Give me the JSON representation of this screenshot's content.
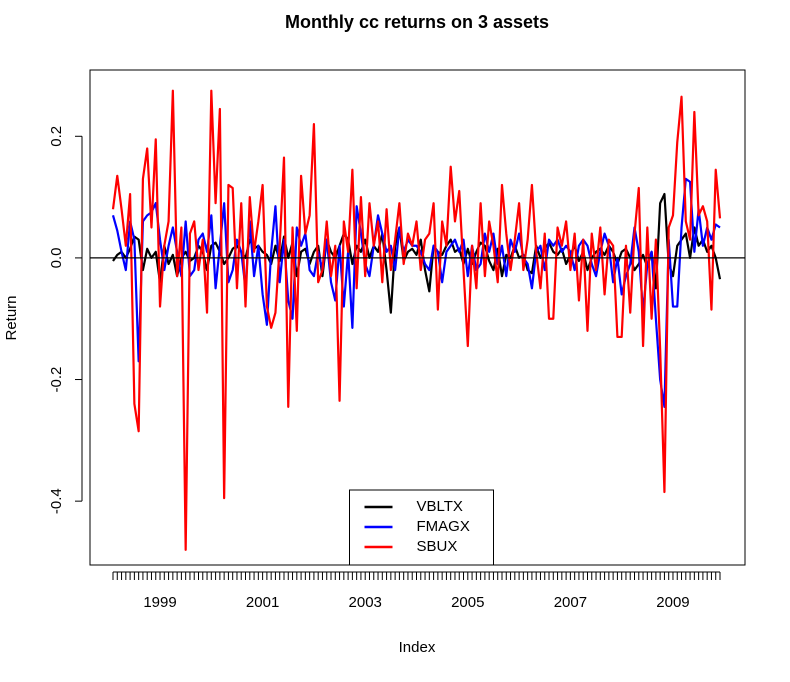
{
  "chart_data": {
    "type": "line",
    "title": "Monthly cc returns on 3 assets",
    "xlabel": "Index",
    "ylabel": "Return",
    "categories": [
      null,
      null,
      null,
      null,
      null,
      null,
      null,
      null,
      null,
      null,
      null,
      "1999",
      null,
      null,
      null,
      null,
      null,
      null,
      null,
      null,
      null,
      null,
      null,
      null,
      null,
      null,
      null,
      null,
      null,
      null,
      null,
      null,
      null,
      null,
      null,
      "2001",
      null,
      null,
      null,
      null,
      null,
      null,
      null,
      null,
      null,
      null,
      null,
      null,
      null,
      null,
      null,
      null,
      null,
      null,
      null,
      null,
      null,
      null,
      null,
      "2003",
      null,
      null,
      null,
      null,
      null,
      null,
      null,
      null,
      null,
      null,
      null,
      null,
      null,
      null,
      null,
      null,
      null,
      null,
      null,
      null,
      null,
      null,
      null,
      "2005",
      null,
      null,
      null,
      null,
      null,
      null,
      null,
      null,
      null,
      null,
      null,
      null,
      null,
      null,
      null,
      null,
      null,
      null,
      null,
      null,
      null,
      null,
      null,
      "2007",
      null,
      null,
      null,
      null,
      null,
      null,
      null,
      null,
      null,
      null,
      null,
      null,
      null,
      null,
      null,
      null,
      null,
      null,
      null,
      null,
      null,
      null,
      null,
      "2009",
      null,
      null,
      null,
      null,
      null,
      null,
      null,
      null,
      null,
      null,
      null
    ],
    "series": [
      {
        "name": "VBLTX",
        "color": "#000000",
        "values": [
          -0.005,
          0.005,
          0.01,
          0.0,
          0.015,
          0.035,
          0.03,
          -0.02,
          0.015,
          0.0,
          0.01,
          -0.04,
          0.02,
          -0.01,
          0.005,
          -0.03,
          0.0,
          0.01,
          -0.005,
          0.0,
          0.02,
          0.01,
          -0.02,
          0.02,
          0.025,
          0.01,
          -0.01,
          0.0,
          0.015,
          0.02,
          0.01,
          0.0,
          0.03,
          0.015,
          0.02,
          0.01,
          0.005,
          -0.01,
          0.02,
          -0.005,
          0.035,
          0.0,
          0.025,
          -0.03,
          0.01,
          0.015,
          -0.01,
          0.01,
          0.02,
          -0.03,
          0.03,
          0.01,
          0.0,
          0.02,
          0.04,
          0.03,
          -0.01,
          0.02,
          0.01,
          0.03,
          0.0,
          0.02,
          0.01,
          0.04,
          -0.02,
          -0.09,
          0.02,
          0.05,
          -0.005,
          0.01,
          0.015,
          0.005,
          0.03,
          -0.02,
          -0.055,
          0.02,
          0.01,
          0.005,
          0.02,
          0.03,
          0.01,
          0.015,
          -0.01,
          0.015,
          -0.01,
          0.01,
          0.025,
          0.02,
          -0.005,
          -0.02,
          0.015,
          -0.03,
          0.005,
          0.0,
          0.02,
          0.0,
          0.005,
          -0.02,
          -0.025,
          0.02,
          0.0,
          0.015,
          0.025,
          0.01,
          0.005,
          0.015,
          -0.01,
          0.005,
          0.02,
          -0.005,
          0.01,
          -0.02,
          0.0,
          0.01,
          0.015,
          0.005,
          0.02,
          0.01,
          -0.01,
          0.01,
          0.015,
          0.0,
          -0.02,
          -0.01,
          0.005,
          -0.015,
          0.01,
          -0.05,
          0.09,
          0.105,
          -0.01,
          -0.03,
          0.02,
          0.03,
          0.04,
          0.0,
          0.05,
          0.02,
          0.03,
          0.01,
          0.02,
          0.0,
          -0.035
        ]
      },
      {
        "name": "FMAGX",
        "color": "#0000ff",
        "values": [
          0.07,
          0.045,
          0.01,
          -0.02,
          0.06,
          0.03,
          -0.17,
          0.06,
          0.07,
          0.075,
          0.09,
          0.03,
          -0.02,
          0.02,
          0.05,
          0.01,
          -0.03,
          0.06,
          -0.03,
          -0.02,
          0.03,
          0.04,
          0.01,
          0.07,
          -0.05,
          0.02,
          0.09,
          -0.04,
          -0.02,
          0.03,
          0.01,
          -0.05,
          0.06,
          -0.03,
          0.02,
          -0.06,
          -0.11,
          0.01,
          0.085,
          -0.04,
          0.03,
          -0.07,
          -0.1,
          0.05,
          0.02,
          0.04,
          -0.02,
          -0.03,
          0.01,
          -0.02,
          0.03,
          -0.04,
          -0.07,
          0.02,
          -0.08,
          0.01,
          -0.115,
          0.085,
          0.04,
          -0.01,
          -0.03,
          0.02,
          0.07,
          0.04,
          0.01,
          0.02,
          -0.02,
          0.05,
          0.01,
          0.03,
          0.02,
          0.02,
          0.01,
          -0.01,
          -0.02,
          0.02,
          0.01,
          -0.04,
          0.01,
          0.02,
          0.03,
          0.01,
          0.03,
          -0.03,
          0.02,
          -0.02,
          -0.01,
          0.04,
          0.01,
          0.04,
          -0.01,
          0.02,
          -0.03,
          0.03,
          0.01,
          0.04,
          0.0,
          -0.01,
          -0.05,
          0.01,
          0.02,
          -0.02,
          0.03,
          0.02,
          0.03,
          0.01,
          0.02,
          0.01,
          -0.02,
          0.02,
          0.03,
          0.02,
          -0.01,
          -0.03,
          0.01,
          0.04,
          0.02,
          -0.04,
          0.0,
          -0.06,
          -0.03,
          -0.01,
          0.05,
          0.01,
          -0.09,
          -0.01,
          0.01,
          -0.1,
          -0.2,
          -0.245,
          0.03,
          -0.08,
          -0.08,
          0.05,
          0.13,
          0.125,
          0.01,
          0.08,
          0.02,
          0.05,
          0.03,
          0.055,
          0.05
        ]
      },
      {
        "name": "SBUX",
        "color": "#ff0000",
        "values": [
          0.08,
          0.135,
          0.08,
          0.02,
          0.105,
          -0.24,
          -0.285,
          0.13,
          0.18,
          0.05,
          0.195,
          -0.08,
          0.02,
          0.06,
          0.275,
          -0.03,
          0.05,
          -0.48,
          0.04,
          0.06,
          -0.02,
          0.03,
          -0.09,
          0.275,
          0.09,
          0.245,
          -0.395,
          0.12,
          0.115,
          -0.05,
          0.09,
          -0.08,
          0.1,
          0.01,
          0.06,
          0.12,
          -0.08,
          -0.115,
          -0.09,
          0.02,
          0.165,
          -0.245,
          0.05,
          -0.12,
          0.135,
          0.04,
          0.07,
          0.22,
          -0.04,
          -0.02,
          0.06,
          -0.03,
          0.02,
          -0.235,
          0.06,
          0.01,
          0.145,
          -0.05,
          0.1,
          -0.03,
          0.09,
          0.02,
          0.06,
          -0.04,
          0.08,
          -0.02,
          0.03,
          0.09,
          -0.01,
          0.04,
          0.02,
          0.06,
          -0.02,
          0.03,
          0.04,
          0.09,
          -0.085,
          0.06,
          0.02,
          0.15,
          0.06,
          0.11,
          -0.02,
          -0.145,
          0.02,
          -0.05,
          0.09,
          -0.03,
          0.06,
          0.02,
          -0.04,
          0.12,
          0.04,
          -0.02,
          0.03,
          0.09,
          -0.02,
          0.03,
          0.12,
          0.01,
          -0.05,
          0.04,
          -0.1,
          -0.1,
          0.05,
          0.02,
          0.06,
          -0.02,
          0.04,
          -0.07,
          0.03,
          -0.12,
          0.04,
          -0.02,
          0.05,
          -0.06,
          0.03,
          0.02,
          -0.13,
          -0.13,
          0.02,
          -0.09,
          0.04,
          0.115,
          -0.145,
          0.05,
          -0.1,
          0.03,
          -0.15,
          -0.385,
          0.05,
          0.07,
          0.19,
          0.265,
          0.06,
          0.03,
          0.24,
          0.07,
          0.085,
          0.06,
          -0.085,
          0.145,
          0.065
        ]
      }
    ],
    "ylim": [
      -0.505,
      0.309
    ],
    "yticks": [
      -0.4,
      -0.2,
      {
        "value": 0,
        "label": "0.0"
      },
      0.2
    ],
    "hline": 0,
    "legend": "bottom"
  }
}
